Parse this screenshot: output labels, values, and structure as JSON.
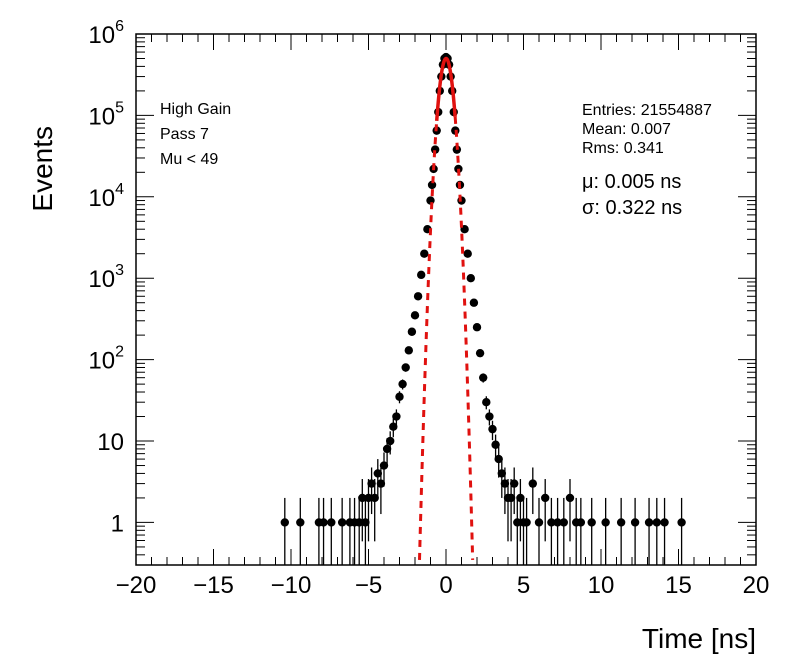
{
  "chart_data": {
    "type": "scatter",
    "xlabel": "Time [ns]",
    "ylabel": "Events",
    "xlim": [
      -20,
      20
    ],
    "ylim": [
      0.3,
      1000000
    ],
    "yscale": "log",
    "grid": false,
    "x_ticks": [
      "−20",
      "−15",
      "−10",
      "−5",
      "0",
      "5",
      "10",
      "15",
      "20"
    ],
    "y_ticks": [
      {
        "base": "1",
        "exp": ""
      },
      {
        "base": "10",
        "exp": ""
      },
      {
        "base": "10",
        "exp": "2"
      },
      {
        "base": "10",
        "exp": "3"
      },
      {
        "base": "10",
        "exp": "4"
      },
      {
        "base": "10",
        "exp": "5"
      },
      {
        "base": "10",
        "exp": "6"
      }
    ],
    "labels": [
      "High Gain",
      "Pass 7",
      "Mu < 49"
    ],
    "stats": [
      "Entries: 21554887",
      "Mean: 0.007",
      "Rms: 0.341"
    ],
    "fit": {
      "mu_label": "μ: 0.005 ns",
      "sigma_label": "σ: 0.322 ns",
      "mu": 0.005,
      "sigma": 0.322,
      "amplitude": 500000,
      "color": "#e0110f"
    },
    "series": [
      {
        "type": "points",
        "color": "#000000",
        "points": [
          [
            -10.4,
            1
          ],
          [
            -9.4,
            1
          ],
          [
            -8.2,
            1
          ],
          [
            -7.9,
            1
          ],
          [
            -7.4,
            1
          ],
          [
            -6.7,
            1
          ],
          [
            -6.2,
            1
          ],
          [
            -5.9,
            1
          ],
          [
            -5.6,
            1
          ],
          [
            -5.4,
            2
          ],
          [
            -5.2,
            1
          ],
          [
            -5.0,
            2
          ],
          [
            -4.8,
            3
          ],
          [
            -4.6,
            2
          ],
          [
            -4.4,
            4
          ],
          [
            -4.2,
            3
          ],
          [
            -4.0,
            5
          ],
          [
            -3.8,
            8
          ],
          [
            -3.6,
            10
          ],
          [
            -3.4,
            15
          ],
          [
            -3.2,
            20
          ],
          [
            -3.0,
            35
          ],
          [
            -2.8,
            50
          ],
          [
            -2.6,
            80
          ],
          [
            -2.4,
            130
          ],
          [
            -2.2,
            220
          ],
          [
            -2.0,
            350
          ],
          [
            -1.8,
            600
          ],
          [
            -1.6,
            1100
          ],
          [
            -1.4,
            2000
          ],
          [
            -1.2,
            4000
          ],
          [
            -1.0,
            9000
          ],
          [
            -0.9,
            14000
          ],
          [
            -0.8,
            22000
          ],
          [
            -0.7,
            38000
          ],
          [
            -0.6,
            65000
          ],
          [
            -0.5,
            110000
          ],
          [
            -0.4,
            200000
          ],
          [
            -0.3,
            300000
          ],
          [
            -0.2,
            420000
          ],
          [
            -0.1,
            500000
          ],
          [
            0.0,
            520000
          ],
          [
            0.1,
            500000
          ],
          [
            0.2,
            420000
          ],
          [
            0.3,
            300000
          ],
          [
            0.4,
            200000
          ],
          [
            0.5,
            110000
          ],
          [
            0.6,
            65000
          ],
          [
            0.7,
            38000
          ],
          [
            0.8,
            22000
          ],
          [
            0.9,
            14000
          ],
          [
            1.0,
            9000
          ],
          [
            1.2,
            4000
          ],
          [
            1.4,
            2000
          ],
          [
            1.6,
            1000
          ],
          [
            1.8,
            500
          ],
          [
            2.0,
            250
          ],
          [
            2.2,
            120
          ],
          [
            2.4,
            60
          ],
          [
            2.6,
            30
          ],
          [
            2.8,
            20
          ],
          [
            3.0,
            14
          ],
          [
            3.2,
            9
          ],
          [
            3.4,
            6
          ],
          [
            3.6,
            4
          ],
          [
            3.8,
            3
          ],
          [
            4.0,
            2
          ],
          [
            4.2,
            2
          ],
          [
            4.4,
            3
          ],
          [
            4.6,
            1
          ],
          [
            4.8,
            2
          ],
          [
            5.0,
            1
          ],
          [
            5.2,
            1
          ],
          [
            5.6,
            3
          ],
          [
            6.0,
            1
          ],
          [
            6.4,
            2
          ],
          [
            6.8,
            1
          ],
          [
            7.2,
            1
          ],
          [
            7.6,
            1
          ],
          [
            8.0,
            2
          ],
          [
            8.4,
            1
          ],
          [
            8.7,
            1
          ],
          [
            9.4,
            1
          ],
          [
            10.3,
            1
          ],
          [
            11.3,
            1
          ],
          [
            12.2,
            1
          ],
          [
            13.1,
            1
          ],
          [
            13.6,
            1
          ],
          [
            14.1,
            1
          ],
          [
            15.2,
            1
          ]
        ]
      }
    ]
  }
}
